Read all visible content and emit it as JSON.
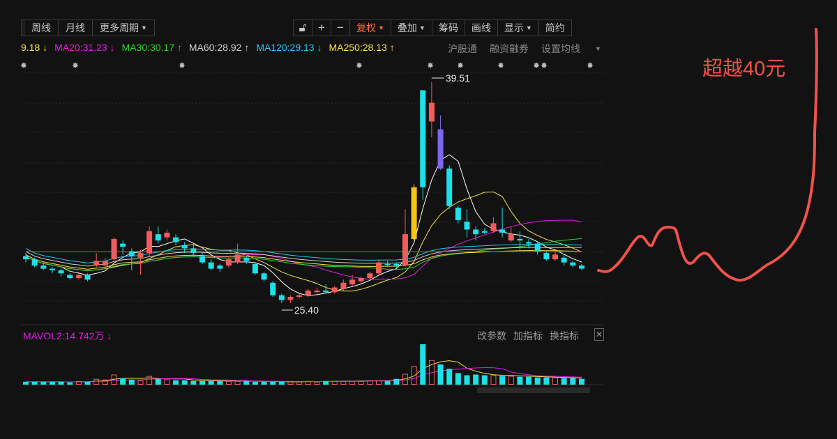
{
  "toolbar": {
    "period_tabs": [
      "周线",
      "月线",
      "更多周期"
    ],
    "tools": [
      "复权",
      "叠加",
      "筹码",
      "画线",
      "显示",
      "简约"
    ],
    "icon_names": [
      "lock-icon",
      "plus-icon",
      "minus-icon"
    ]
  },
  "ma_legend": {
    "items": [
      {
        "label": "9.18",
        "arrow": "↓",
        "color": "#f5e14a"
      },
      {
        "label": "MA20:31.23",
        "arrow": "↓",
        "color": "#e01ee0"
      },
      {
        "label": "MA30:30.17",
        "arrow": "↑",
        "color": "#2fd12f"
      },
      {
        "label": "MA60:28.92",
        "arrow": "↑",
        "color": "#cfcfcf"
      },
      {
        "label": "MA120:29.13",
        "arrow": "↓",
        "color": "#26c6ee"
      },
      {
        "label": "MA250:28.13",
        "arrow": "↑",
        "color": "#f5e14a"
      }
    ],
    "actions": [
      "沪股通",
      "融资融券",
      "设置均线"
    ]
  },
  "annotation": "超越40元",
  "chart_labels": {
    "high": "39.51",
    "low": "25.40"
  },
  "volume": {
    "title": "MAVOL2:14.742万",
    "title_arrow": "↓",
    "actions": [
      "改参数",
      "加指标",
      "换指标"
    ],
    "close_label": "✕"
  },
  "chart_data": {
    "type": "candlestick",
    "price_range": [
      24.0,
      41.0
    ],
    "high_marker": 39.51,
    "low_marker": 25.4,
    "candles": [
      {
        "o": 28.2,
        "c": 28.4,
        "h": 28.6,
        "l": 28.0,
        "up": false
      },
      {
        "o": 28.2,
        "c": 27.8,
        "h": 28.3,
        "l": 27.7,
        "up": false
      },
      {
        "o": 27.8,
        "c": 27.6,
        "h": 28.0,
        "l": 27.5,
        "up": false
      },
      {
        "o": 27.6,
        "c": 27.5,
        "h": 27.7,
        "l": 27.3,
        "up": false
      },
      {
        "o": 27.5,
        "c": 27.3,
        "h": 27.6,
        "l": 27.1,
        "up": false
      },
      {
        "o": 27.2,
        "c": 27.0,
        "h": 27.3,
        "l": 26.9,
        "up": false
      },
      {
        "o": 27.0,
        "c": 27.2,
        "h": 27.4,
        "l": 26.9,
        "up": true
      },
      {
        "o": 27.2,
        "c": 26.9,
        "h": 27.3,
        "l": 26.8,
        "up": false
      },
      {
        "o": 27.8,
        "c": 28.1,
        "h": 28.6,
        "l": 27.7,
        "up": true
      },
      {
        "o": 27.8,
        "c": 28.1,
        "h": 28.3,
        "l": 27.6,
        "up": true
      },
      {
        "o": 28.2,
        "c": 29.5,
        "h": 29.6,
        "l": 28.1,
        "up": true
      },
      {
        "o": 29.2,
        "c": 29.0,
        "h": 29.4,
        "l": 28.5,
        "up": false
      },
      {
        "o": 28.7,
        "c": 28.4,
        "h": 28.9,
        "l": 27.5,
        "up": false
      },
      {
        "o": 28.6,
        "c": 28.3,
        "h": 28.8,
        "l": 27.2,
        "up": true
      },
      {
        "o": 28.6,
        "c": 30.0,
        "h": 30.3,
        "l": 28.4,
        "up": true
      },
      {
        "o": 29.8,
        "c": 29.4,
        "h": 30.3,
        "l": 29.2,
        "up": false
      },
      {
        "o": 29.6,
        "c": 29.9,
        "h": 30.1,
        "l": 29.4,
        "up": true
      },
      {
        "o": 29.6,
        "c": 29.3,
        "h": 29.8,
        "l": 29.1,
        "up": false
      },
      {
        "o": 29.1,
        "c": 28.9,
        "h": 29.3,
        "l": 28.6,
        "up": false
      },
      {
        "o": 28.9,
        "c": 28.6,
        "h": 29.2,
        "l": 28.4,
        "up": false
      },
      {
        "o": 28.4,
        "c": 28.0,
        "h": 28.6,
        "l": 27.9,
        "up": false
      },
      {
        "o": 28.0,
        "c": 27.6,
        "h": 28.2,
        "l": 27.5,
        "up": false
      },
      {
        "o": 27.6,
        "c": 27.8,
        "h": 27.9,
        "l": 27.4,
        "up": false
      },
      {
        "o": 27.8,
        "c": 28.2,
        "h": 28.4,
        "l": 27.7,
        "up": true
      },
      {
        "o": 28.0,
        "c": 28.5,
        "h": 29.2,
        "l": 27.9,
        "up": true
      },
      {
        "o": 28.3,
        "c": 28.1,
        "h": 28.4,
        "l": 27.9,
        "up": false
      },
      {
        "o": 27.9,
        "c": 27.3,
        "h": 28.0,
        "l": 27.2,
        "up": false
      },
      {
        "o": 27.3,
        "c": 26.9,
        "h": 27.4,
        "l": 26.8,
        "up": false
      },
      {
        "o": 26.7,
        "c": 25.9,
        "h": 26.8,
        "l": 25.8,
        "up": false
      },
      {
        "o": 25.9,
        "c": 25.6,
        "h": 26.0,
        "l": 25.4,
        "up": false
      },
      {
        "o": 25.6,
        "c": 25.8,
        "h": 25.9,
        "l": 25.4,
        "up": true
      },
      {
        "o": 25.8,
        "c": 25.9,
        "h": 26.0,
        "l": 25.7,
        "up": true
      },
      {
        "o": 25.9,
        "c": 26.2,
        "h": 26.3,
        "l": 25.8,
        "up": true
      },
      {
        "o": 26.1,
        "c": 26.2,
        "h": 26.4,
        "l": 26.0,
        "up": true
      },
      {
        "o": 26.2,
        "c": 26.1,
        "h": 26.6,
        "l": 26.0,
        "up": false
      },
      {
        "o": 26.1,
        "c": 26.4,
        "h": 26.5,
        "l": 26.0,
        "up": true
      },
      {
        "o": 26.3,
        "c": 26.7,
        "h": 26.9,
        "l": 26.2,
        "up": true
      },
      {
        "o": 26.6,
        "c": 26.9,
        "h": 27.2,
        "l": 26.5,
        "up": true
      },
      {
        "o": 26.8,
        "c": 27.0,
        "h": 27.1,
        "l": 26.6,
        "up": true
      },
      {
        "o": 27.0,
        "c": 27.3,
        "h": 27.4,
        "l": 26.9,
        "up": true
      },
      {
        "o": 27.3,
        "c": 28.0,
        "h": 28.2,
        "l": 27.2,
        "up": true
      },
      {
        "o": 27.9,
        "c": 27.9,
        "h": 28.1,
        "l": 27.7,
        "up": false
      },
      {
        "o": 27.9,
        "c": 27.8,
        "h": 28.0,
        "l": 27.6,
        "up": false
      },
      {
        "o": 27.8,
        "c": 29.8,
        "h": 31.4,
        "l": 27.7,
        "up": true
      },
      {
        "o": 29.5,
        "c": 32.8,
        "h": 33.0,
        "l": 29.4,
        "up": true,
        "color": "#f5c518"
      },
      {
        "o": 32.8,
        "c": 39.0,
        "h": 39.0,
        "l": 32.0,
        "up": false
      },
      {
        "o": 38.2,
        "c": 37.0,
        "h": 39.51,
        "l": 36.0,
        "up": true
      },
      {
        "o": 36.5,
        "c": 34.0,
        "h": 37.4,
        "l": 33.9,
        "up": false,
        "color": "#7b68ee"
      },
      {
        "o": 34.0,
        "c": 31.6,
        "h": 34.2,
        "l": 31.4,
        "up": false
      },
      {
        "o": 31.5,
        "c": 30.7,
        "h": 31.6,
        "l": 30.5,
        "up": false
      },
      {
        "o": 30.6,
        "c": 30.1,
        "h": 31.4,
        "l": 29.6,
        "up": false
      },
      {
        "o": 30.1,
        "c": 29.8,
        "h": 30.3,
        "l": 29.4,
        "up": false
      },
      {
        "o": 29.9,
        "c": 30.0,
        "h": 30.2,
        "l": 29.8,
        "up": false
      },
      {
        "o": 30.5,
        "c": 30.0,
        "h": 30.9,
        "l": 29.9,
        "up": true
      },
      {
        "o": 30.1,
        "c": 29.9,
        "h": 31.5,
        "l": 29.6,
        "up": false
      },
      {
        "o": 29.8,
        "c": 29.4,
        "h": 30.3,
        "l": 29.3,
        "up": true
      },
      {
        "o": 29.5,
        "c": 29.4,
        "h": 30.0,
        "l": 28.8,
        "up": false
      },
      {
        "o": 29.3,
        "c": 29.2,
        "h": 29.5,
        "l": 28.9,
        "up": false
      },
      {
        "o": 29.2,
        "c": 28.7,
        "h": 29.3,
        "l": 28.5,
        "up": false
      },
      {
        "o": 28.6,
        "c": 28.2,
        "h": 28.7,
        "l": 28.1,
        "up": false
      },
      {
        "o": 28.2,
        "c": 28.5,
        "h": 28.7,
        "l": 28.1,
        "up": true
      },
      {
        "o": 28.3,
        "c": 28.0,
        "h": 28.5,
        "l": 27.8,
        "up": false
      },
      {
        "o": 28.0,
        "c": 27.8,
        "h": 28.1,
        "l": 27.7,
        "up": false
      },
      {
        "o": 27.8,
        "c": 27.6,
        "h": 27.9,
        "l": 27.5,
        "up": false
      }
    ],
    "volume": [
      4,
      4,
      4,
      4,
      4,
      3,
      5,
      4,
      8,
      7,
      14,
      9,
      7,
      6,
      12,
      8,
      8,
      6,
      6,
      5,
      5,
      5,
      5,
      5,
      5,
      5,
      4,
      4,
      4,
      4,
      4,
      4,
      5,
      4,
      5,
      5,
      5,
      5,
      5,
      6,
      6,
      5,
      8,
      15,
      26,
      56,
      34,
      28,
      22,
      16,
      13,
      14,
      13,
      13,
      12,
      12,
      11,
      11,
      10,
      10,
      10,
      9,
      9,
      8
    ],
    "sketch_curve": "hand-drawn red line rising to far right"
  }
}
